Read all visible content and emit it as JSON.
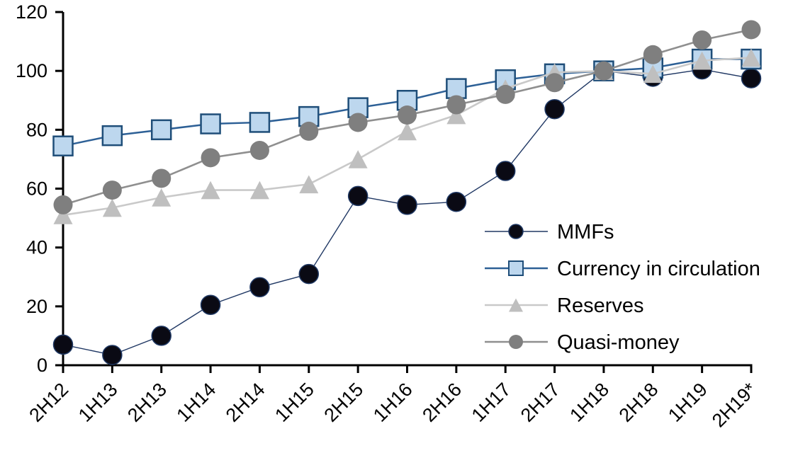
{
  "chart_data": {
    "type": "line",
    "title": "",
    "xlabel": "",
    "ylabel": "",
    "categories": [
      "2H12",
      "1H13",
      "2H13",
      "1H14",
      "2H14",
      "1H15",
      "2H15",
      "1H16",
      "2H16",
      "1H17",
      "2H17",
      "1H18",
      "2H18",
      "1H19",
      "2H19*"
    ],
    "series": [
      {
        "name": "MMFs",
        "marker": "circle",
        "marker_fill": "#0a0a14",
        "marker_stroke": "#1f3864",
        "line_color": "#203864",
        "line_width": 1.4,
        "values": [
          7,
          3.5,
          10,
          20.5,
          26.5,
          31,
          57.5,
          54.5,
          55.5,
          66,
          87,
          100,
          98,
          100.5,
          97.5
        ]
      },
      {
        "name": "Currency in circulation",
        "marker": "square",
        "marker_fill": "#bdd7ee",
        "marker_stroke": "#1f4e79",
        "line_color": "#2d6096",
        "line_width": 2.5,
        "values": [
          74.5,
          78,
          80,
          82,
          82.5,
          84.5,
          87.5,
          90,
          94,
          97,
          99,
          100,
          101,
          104,
          104
        ]
      },
      {
        "name": "Reserves",
        "marker": "triangle",
        "marker_fill": "#bfbfbf",
        "marker_stroke": "none",
        "line_color": "#c9c9c9",
        "line_width": 2.6,
        "values": [
          51,
          53.5,
          57,
          59.5,
          59.5,
          61.5,
          70,
          79.5,
          85,
          94,
          99.5,
          100,
          99,
          103.5,
          104.5
        ]
      },
      {
        "name": "Quasi-money",
        "marker": "circle",
        "marker_fill": "#7f7f7f",
        "marker_stroke": "none",
        "line_color": "#8f8f8f",
        "line_width": 2.6,
        "values": [
          54.5,
          59.5,
          63.5,
          70.5,
          73,
          79.5,
          82.5,
          85,
          88.5,
          92,
          96,
          100,
          105.5,
          110.5,
          114
        ]
      }
    ],
    "y_axis": {
      "min": 0,
      "max": 120,
      "step": 20,
      "tick_labels": [
        "0",
        "20",
        "40",
        "60",
        "80",
        "100",
        "120"
      ]
    },
    "x_axis": {
      "tick_labels": [
        "2H12",
        "1H13",
        "2H13",
        "1H14",
        "2H14",
        "1H15",
        "2H15",
        "1H16",
        "2H16",
        "1H17",
        "2H17",
        "1H18",
        "2H18",
        "1H19",
        "2H19*"
      ]
    },
    "legend": {
      "position": "middle-right",
      "entries": [
        "MMFs",
        "Currency in circulation",
        "Reserves",
        "Quasi-money"
      ]
    },
    "grid": "off",
    "axis_color": "#000000"
  }
}
